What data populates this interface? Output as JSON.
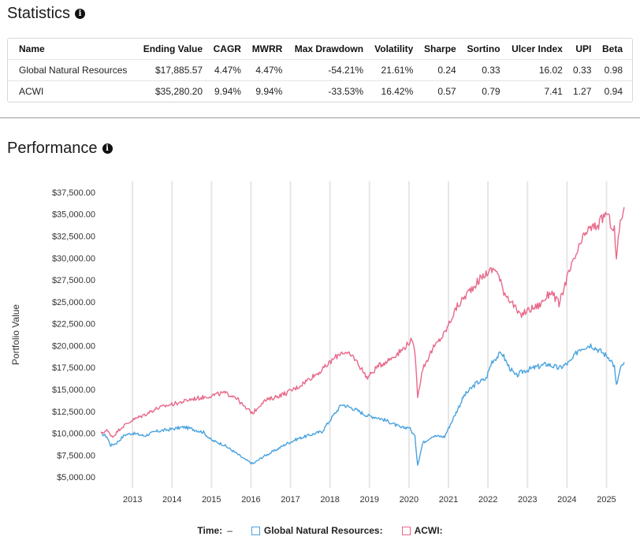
{
  "statistics": {
    "title": "Statistics",
    "columns": [
      "Name",
      "Ending Value",
      "CAGR",
      "MWRR",
      "Max Drawdown",
      "Volatility",
      "Sharpe",
      "Sortino",
      "Ulcer Index",
      "UPI",
      "Beta"
    ],
    "rows": [
      [
        "Global Natural Resources",
        "$17,885.57",
        "4.47%",
        "4.47%",
        "-54.21%",
        "21.61%",
        "0.24",
        "0.33",
        "16.02",
        "0.33",
        "0.98"
      ],
      [
        "ACWI",
        "$35,280.20",
        "9.94%",
        "9.94%",
        "-33.53%",
        "16.42%",
        "0.57",
        "0.79",
        "7.41",
        "1.27",
        "0.94"
      ]
    ]
  },
  "performance": {
    "title": "Performance",
    "legend": {
      "time_label": "Time:",
      "time_value": "–",
      "series": [
        {
          "label": "Global Natural Resources:",
          "color": "#4aa3df"
        },
        {
          "label": "ACWI:",
          "color": "#e8698a"
        }
      ]
    }
  },
  "chart_data": {
    "type": "line",
    "ylabel": "Portfolio Value",
    "xlabel": "",
    "ylim": [
      3750,
      38750
    ],
    "xlim": [
      2012.2,
      2025.45
    ],
    "y_ticks": [
      "$5,000.00",
      "$7,500.00",
      "$10,000.00",
      "$12,500.00",
      "$15,000.00",
      "$17,500.00",
      "$20,000.00",
      "$22,500.00",
      "$25,000.00",
      "$27,500.00",
      "$30,000.00",
      "$32,500.00",
      "$35,000.00",
      "$37,500.00"
    ],
    "x_ticks": [
      "2013",
      "2014",
      "2015",
      "2016",
      "2017",
      "2018",
      "2019",
      "2020",
      "2021",
      "2022",
      "2023",
      "2024",
      "2025"
    ],
    "grid": true,
    "series": [
      {
        "name": "Global Natural Resources",
        "color": "#4aa3df",
        "x": [
          2012.2,
          2012.35,
          2012.45,
          2012.6,
          2012.8,
          2013.0,
          2013.3,
          2013.6,
          2013.9,
          2014.3,
          2014.5,
          2014.8,
          2015.0,
          2015.3,
          2015.6,
          2015.85,
          2016.05,
          2016.3,
          2016.6,
          2016.9,
          2017.2,
          2017.5,
          2017.8,
          2018.05,
          2018.3,
          2018.6,
          2018.95,
          2019.2,
          2019.5,
          2019.8,
          2020.0,
          2020.15,
          2020.22,
          2020.35,
          2020.6,
          2020.9,
          2021.1,
          2021.4,
          2021.7,
          2021.95,
          2022.1,
          2022.35,
          2022.5,
          2022.7,
          2022.9,
          2023.2,
          2023.5,
          2023.8,
          2024.1,
          2024.3,
          2024.6,
          2024.9,
          2025.1,
          2025.2,
          2025.25,
          2025.35,
          2025.45
        ],
        "y": [
          10000,
          9600,
          8600,
          8900,
          9800,
          10000,
          9700,
          10200,
          10400,
          10700,
          10500,
          10100,
          9200,
          8700,
          7800,
          7000,
          6500,
          7300,
          8000,
          8800,
          9400,
          9800,
          10200,
          11800,
          13300,
          12800,
          12000,
          11800,
          11300,
          10600,
          10700,
          9600,
          6400,
          8900,
          9700,
          9600,
          11500,
          14300,
          15700,
          16200,
          18200,
          19200,
          17800,
          16500,
          17100,
          17500,
          17900,
          17400,
          18200,
          19600,
          20100,
          19200,
          18500,
          17600,
          15400,
          17300,
          18100
        ]
      },
      {
        "name": "ACWI",
        "color": "#e8698a",
        "x": [
          2012.2,
          2012.35,
          2012.5,
          2012.7,
          2013.0,
          2013.3,
          2013.6,
          2013.9,
          2014.2,
          2014.5,
          2014.8,
          2015.0,
          2015.3,
          2015.6,
          2015.85,
          2016.05,
          2016.3,
          2016.6,
          2016.9,
          2017.2,
          2017.5,
          2017.8,
          2018.05,
          2018.3,
          2018.6,
          2018.95,
          2019.2,
          2019.5,
          2019.8,
          2020.05,
          2020.15,
          2020.22,
          2020.35,
          2020.6,
          2020.9,
          2021.2,
          2021.5,
          2021.8,
          2022.0,
          2022.2,
          2022.4,
          2022.6,
          2022.8,
          2023.0,
          2023.3,
          2023.6,
          2023.8,
          2024.0,
          2024.3,
          2024.5,
          2024.8,
          2025.0,
          2025.1,
          2025.2,
          2025.25,
          2025.35,
          2025.45
        ],
        "y": [
          10000,
          10300,
          9600,
          10600,
          11500,
          12100,
          12800,
          13200,
          13500,
          13900,
          14100,
          14300,
          14600,
          14200,
          12900,
          12300,
          13600,
          14100,
          14600,
          15300,
          16300,
          17200,
          18300,
          19300,
          18700,
          16300,
          17600,
          18400,
          19400,
          20600,
          19400,
          14300,
          17400,
          19600,
          21400,
          24300,
          26100,
          27600,
          28400,
          28800,
          26200,
          25000,
          23400,
          24000,
          24600,
          26200,
          24700,
          27700,
          31100,
          33100,
          33800,
          35200,
          34000,
          33200,
          29800,
          34200,
          35800
        ]
      }
    ]
  }
}
